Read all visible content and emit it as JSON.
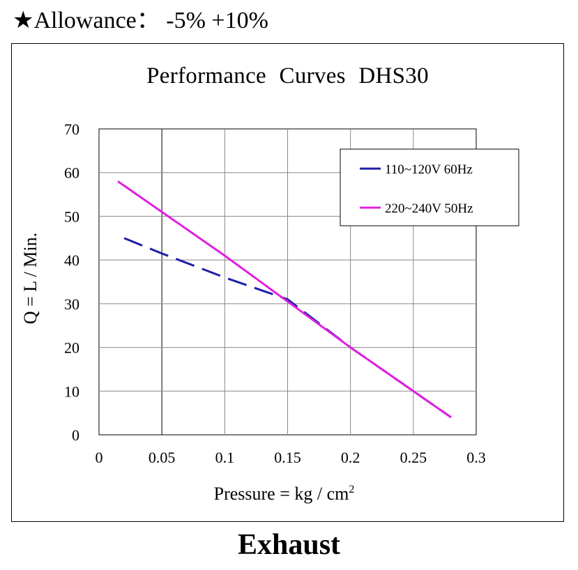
{
  "header": {
    "star": "★",
    "allowance": "Allowance： -5% +10%"
  },
  "footer": {
    "label": "Exhaust"
  },
  "chart_data": {
    "type": "line",
    "title": "Performance  Curves  DHS30",
    "xlabel": "Pressure = kg / cm",
    "xlabel_sup": "2",
    "ylabel": "Q = L / Min.",
    "xlim": [
      0,
      0.3
    ],
    "ylim": [
      0,
      70
    ],
    "x_ticks": [
      "0",
      "0.05",
      "0.1",
      "0.15",
      "0.2",
      "0.25",
      "0.3"
    ],
    "y_ticks": [
      "0",
      "10",
      "20",
      "30",
      "40",
      "50",
      "60",
      "70"
    ],
    "grid": true,
    "legend_position": "top-right",
    "series": [
      {
        "name": "110~120V 60Hz",
        "color": "#1f1fa8",
        "style": "dashed",
        "x": [
          0.02,
          0.05,
          0.1,
          0.15,
          0.2,
          0.25,
          0.28
        ],
        "y": [
          45,
          41.5,
          36,
          31,
          20,
          10,
          4
        ]
      },
      {
        "name": "220~240V 50Hz",
        "color": "#e020e0",
        "style": "solid",
        "x": [
          0.015,
          0.05,
          0.1,
          0.15,
          0.2,
          0.25,
          0.28
        ],
        "y": [
          58,
          51,
          41,
          30.5,
          20,
          10,
          4
        ]
      }
    ]
  }
}
